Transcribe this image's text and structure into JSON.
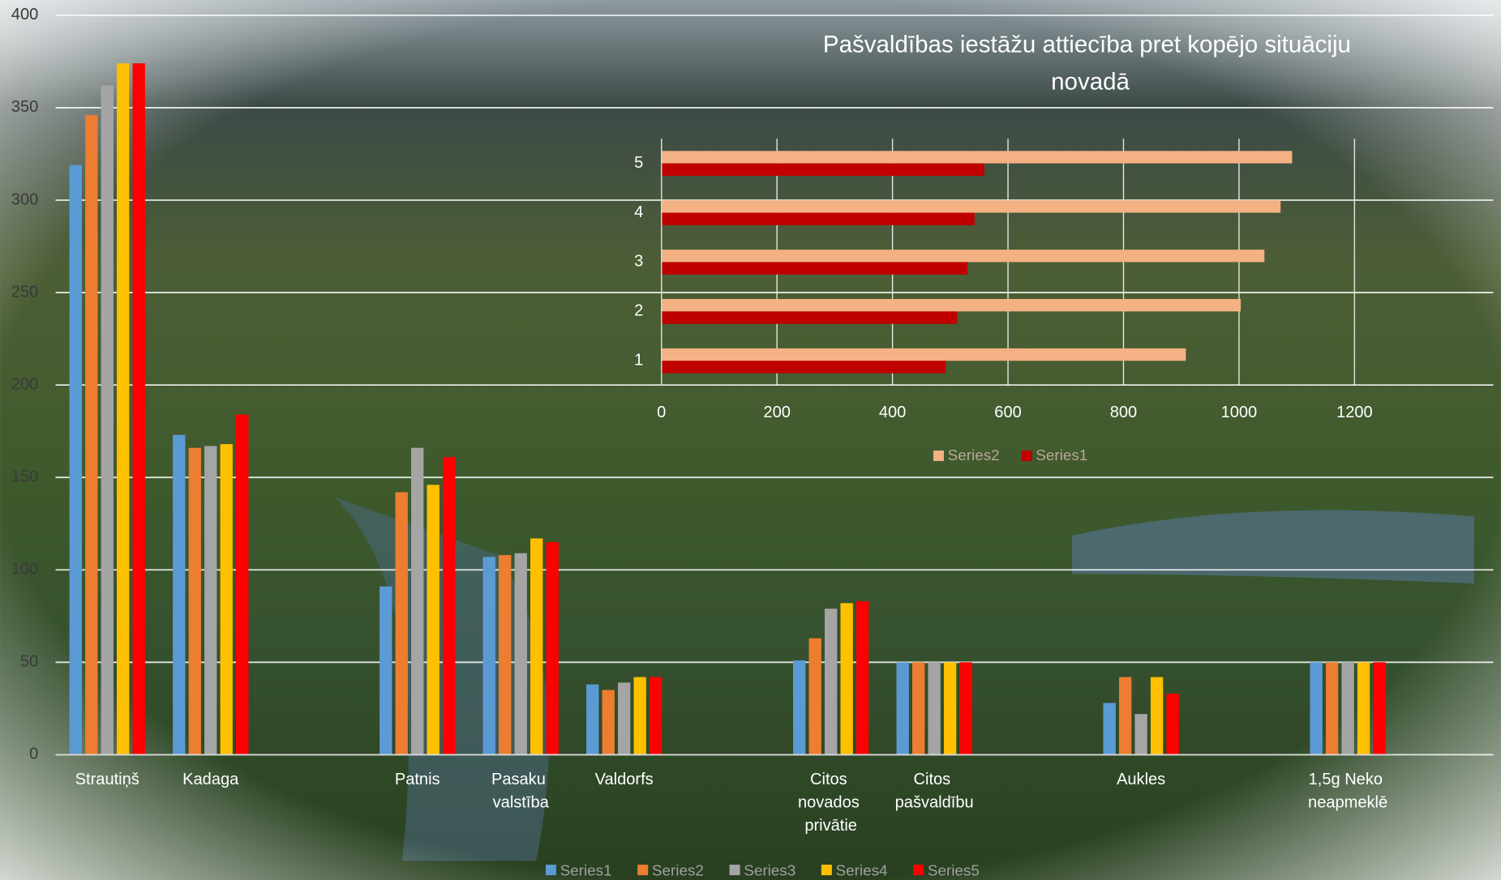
{
  "chart_data": [
    {
      "type": "bar",
      "categories": [
        "Strautiņš",
        "Kadaga",
        null,
        "Patnis",
        "Pasaku valstība",
        "Valdorfs",
        null,
        "Citos novados privātie",
        "Citos pašvaldību",
        null,
        "Aukles",
        null,
        "1,5g Neko neapmeklē"
      ],
      "series": [
        {
          "name": "Series1",
          "color": "#5b9bd5",
          "values": [
            319,
            173,
            null,
            91,
            107,
            38,
            null,
            51,
            50,
            null,
            28,
            null,
            50
          ]
        },
        {
          "name": "Series2",
          "color": "#ed7d31",
          "values": [
            346,
            166,
            null,
            142,
            108,
            35,
            null,
            63,
            50,
            null,
            42,
            null,
            50
          ]
        },
        {
          "name": "Series3",
          "color": "#a5a5a5",
          "values": [
            362,
            167,
            null,
            166,
            109,
            39,
            null,
            79,
            50,
            null,
            22,
            null,
            50
          ]
        },
        {
          "name": "Series4",
          "color": "#ffc000",
          "values": [
            374,
            168,
            null,
            146,
            117,
            42,
            null,
            82,
            50,
            null,
            42,
            null,
            50
          ]
        },
        {
          "name": "Series5",
          "color": "#ff0000",
          "values": [
            374,
            184,
            null,
            161,
            115,
            42,
            null,
            83,
            50,
            null,
            33,
            null,
            50
          ]
        }
      ],
      "ylim": [
        0,
        400
      ],
      "yticks": [
        0,
        50,
        100,
        150,
        200,
        250,
        300,
        350,
        400
      ],
      "grid": true,
      "legend": "bottom"
    },
    {
      "type": "hbar",
      "title": "Pašvaldības iestāžu attiecība pret kopējo situāciju novadā",
      "categories": [
        "1",
        "2",
        "3",
        "4",
        "5"
      ],
      "series": [
        {
          "name": "Series2",
          "color": "#f4b183",
          "values": [
            908,
            1003,
            1044,
            1072,
            1092
          ]
        },
        {
          "name": "Series1",
          "color": "#c00000",
          "values": [
            492,
            512,
            530,
            542,
            559
          ]
        }
      ],
      "xlim": [
        0,
        1200
      ],
      "xticks": [
        0,
        200,
        400,
        600,
        800,
        1000,
        1200
      ],
      "grid": true,
      "legend": "bottom"
    }
  ]
}
